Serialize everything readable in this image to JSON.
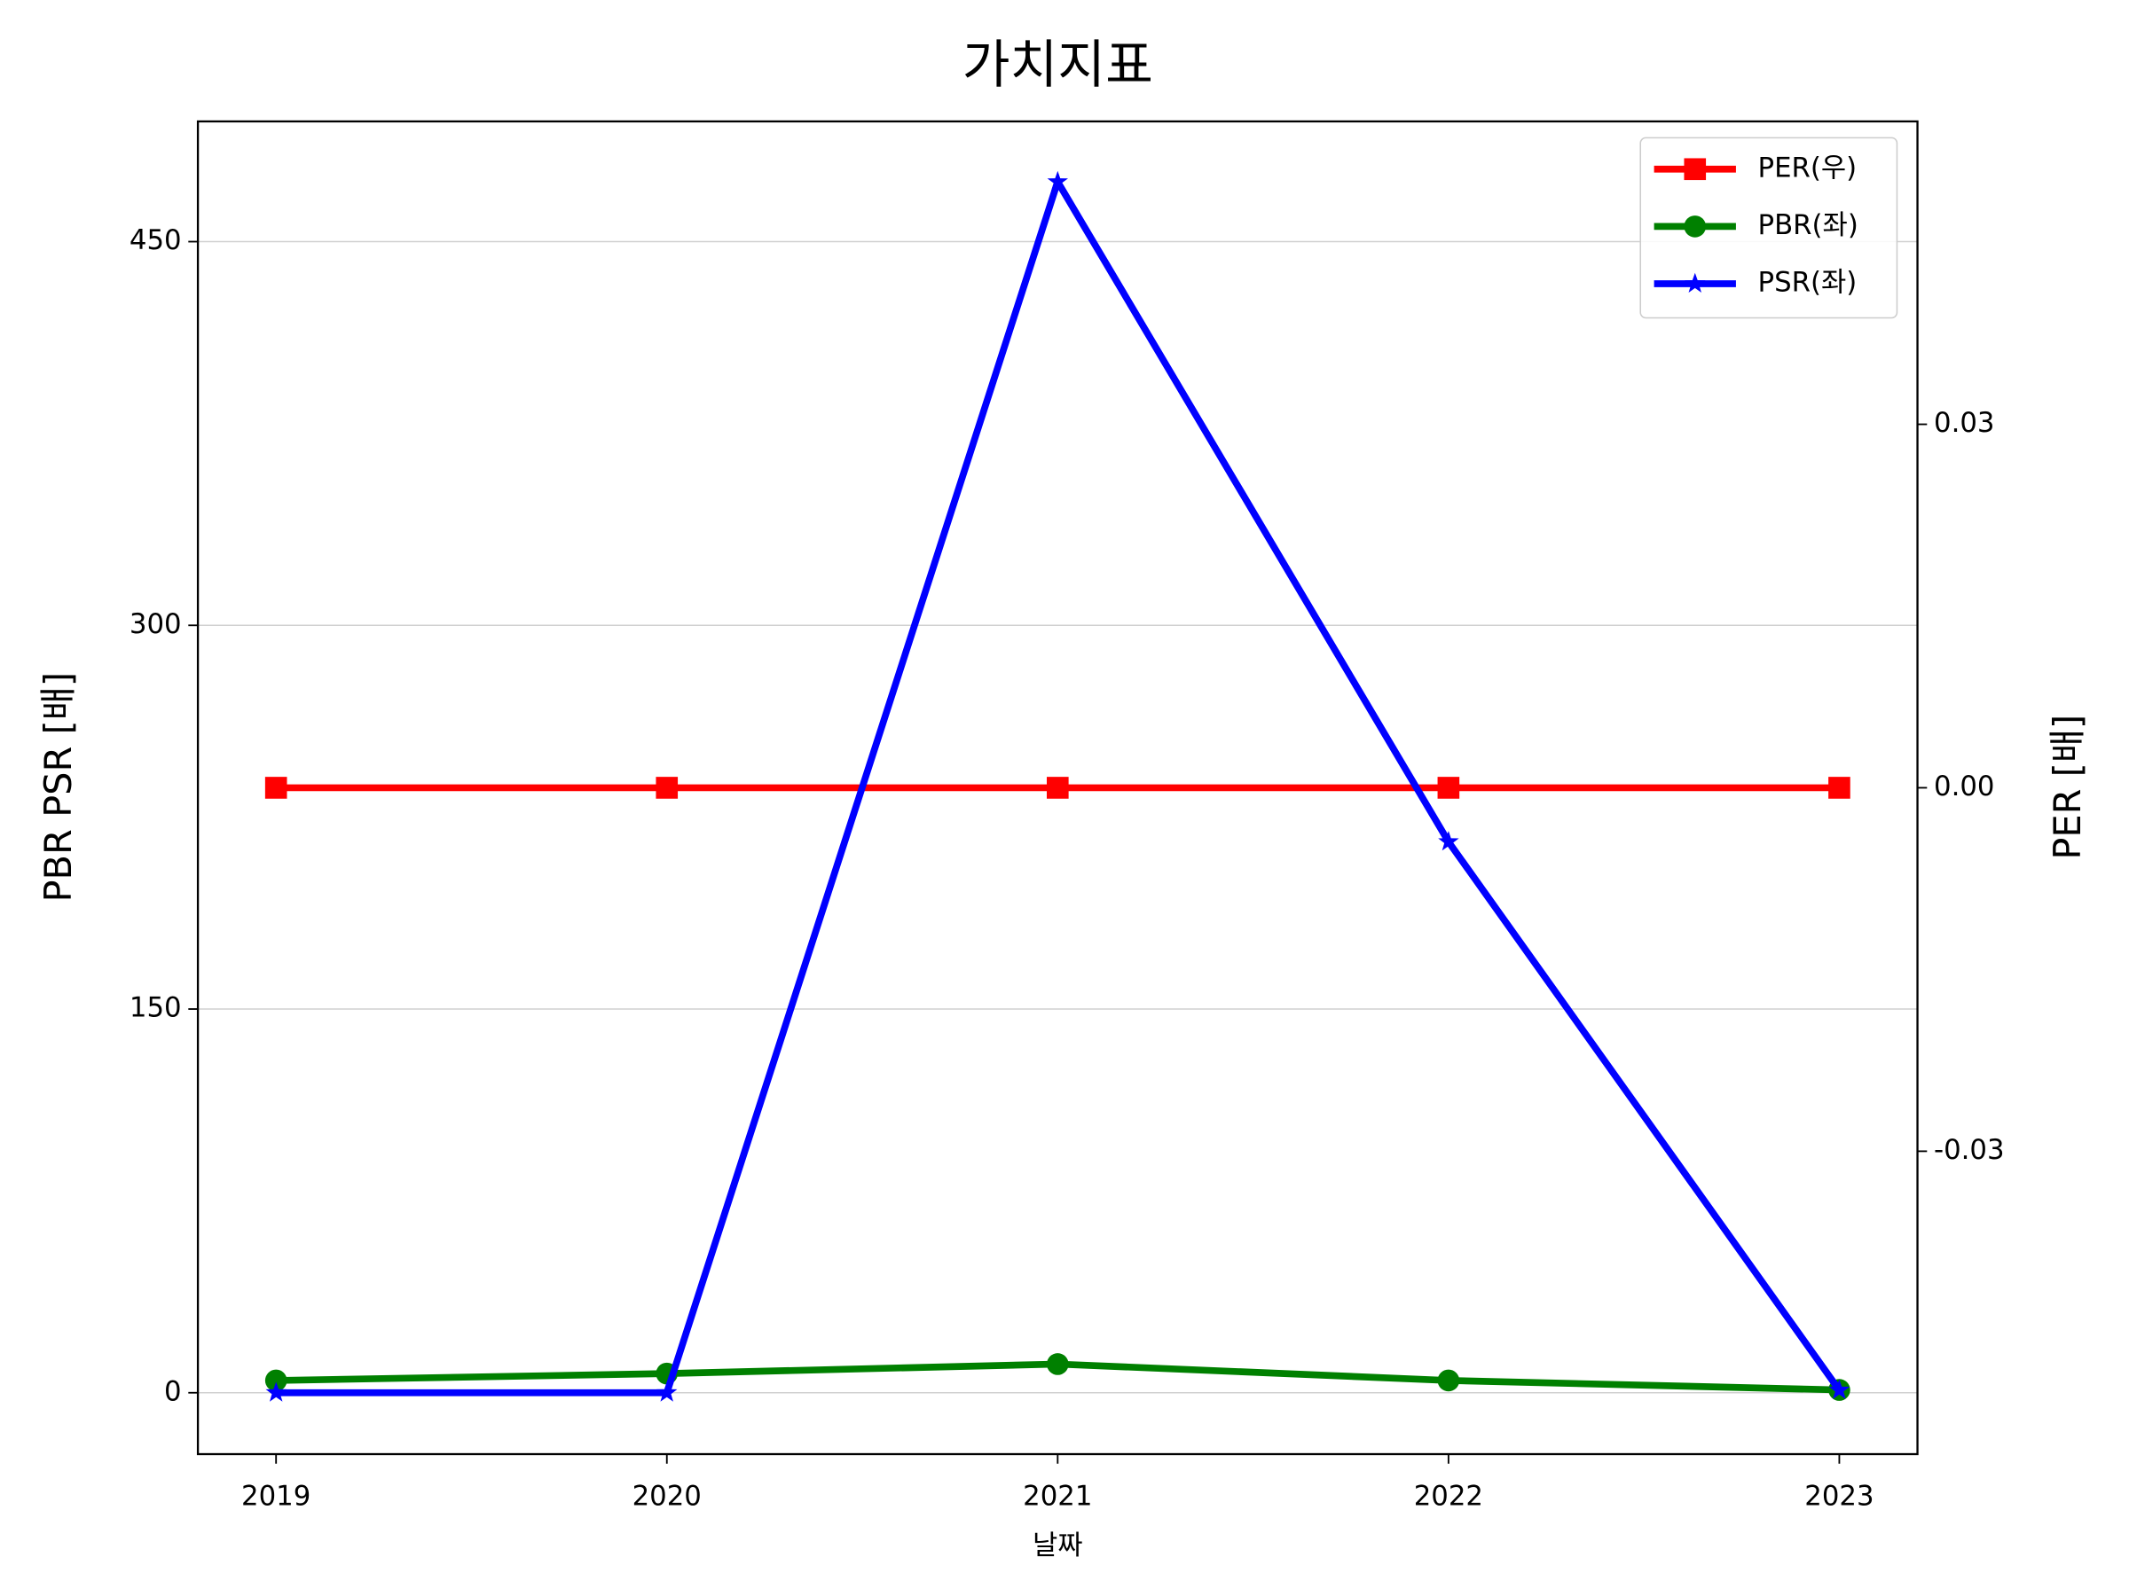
{
  "chart_data": {
    "type": "line",
    "title": "가치지표",
    "xlabel": "날짜",
    "ylabel": "PBR PSR [배]",
    "ylabel_color": "#008000",
    "y2label": "PER [배]",
    "y2label_color": "#ff0000",
    "x": [
      2019,
      2020,
      2021,
      2022,
      2023
    ],
    "xlim": [
      2018.8,
      2023.2
    ],
    "xticks": [
      2019,
      2020,
      2021,
      2022,
      2023
    ],
    "ylim": [
      -24,
      497
    ],
    "yticks": [
      0,
      150,
      300,
      450
    ],
    "y2lim": [
      -0.055,
      0.055
    ],
    "y2ticks": [
      -0.03,
      {
        "value": 0,
        "label": "0.00"
      },
      0.03
    ],
    "grid": true,
    "legend": "upper right",
    "series": [
      {
        "name": "PER(우)",
        "color": "#ff0000",
        "marker": "square",
        "axis": "y2",
        "values": [
          0,
          0,
          0,
          0,
          0
        ]
      },
      {
        "name": "PBR(좌)",
        "color": "#008000",
        "marker": "circle",
        "values": [
          4.8,
          7.5,
          11.2,
          4.8,
          1.1
        ]
      },
      {
        "name": "PSR(좌)",
        "color": "#0000ff",
        "marker": "star",
        "values": [
          0,
          0,
          473.4,
          215.4,
          1
        ]
      }
    ]
  }
}
